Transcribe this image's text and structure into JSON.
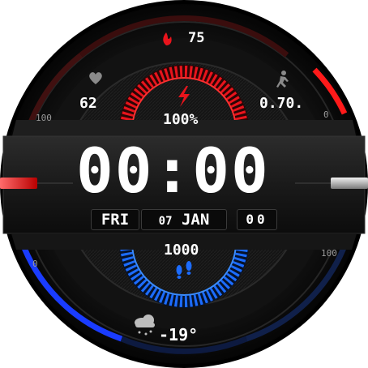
{
  "watch": {
    "calories": "75",
    "heart_rate": "62",
    "distance": "0.70.",
    "battery": "100%",
    "time": "00:00",
    "day": "FRI",
    "date_day": "07",
    "month": "JAN",
    "seconds": "00",
    "steps": "1000",
    "temperature": "-19°",
    "scale_max": "100",
    "scale_min": "0",
    "icons": {
      "calories": "flame-icon",
      "heart": "heart-icon",
      "activity": "running-person-icon",
      "battery": "lightning-icon",
      "steps": "footprints-icon",
      "weather": "snow-cloud-icon"
    },
    "colors": {
      "accent_red": "#e8141c",
      "accent_blue": "#1c6cff",
      "bezel": "#1b1b1b",
      "text": "#ffffff"
    },
    "battery_level": 1.0,
    "steps_level": 1.0,
    "top_arc_level": 0.45,
    "bottom_arc_level": 0.5
  }
}
